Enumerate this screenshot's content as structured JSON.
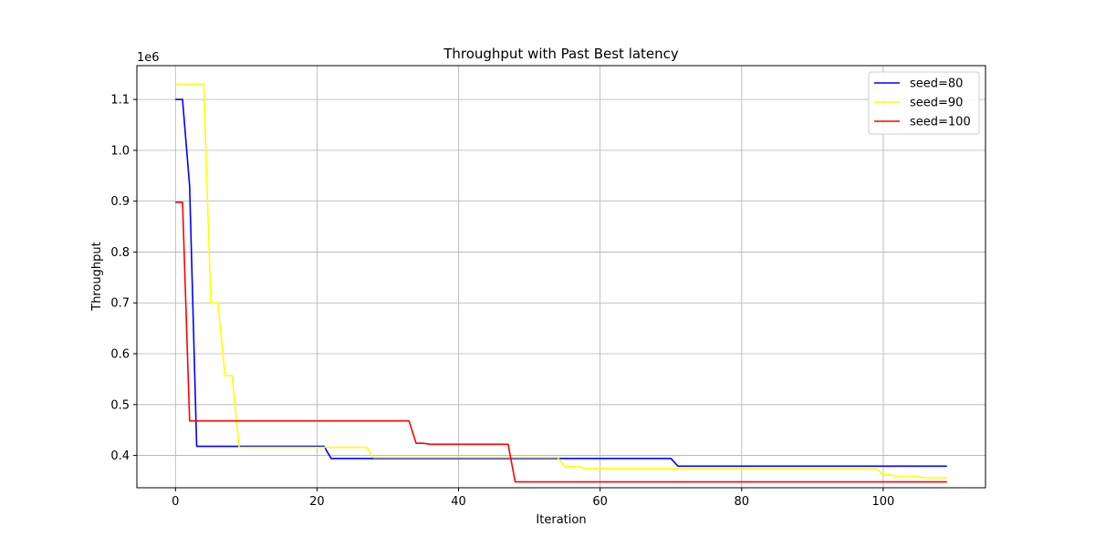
{
  "chart_data": {
    "type": "line",
    "title": "Throughput with Past Best latency",
    "xlabel": "Iteration",
    "ylabel": "Throughput",
    "y_multiplier": "1e6",
    "xlim": [
      -5.45,
      114.45
    ],
    "ylim": [
      0.3365,
      1.1665
    ],
    "x_ticks": [
      0,
      20,
      40,
      60,
      80,
      100
    ],
    "y_ticks": [
      0.4,
      0.5,
      0.6,
      0.7,
      0.8,
      0.9,
      1.0,
      1.1
    ],
    "grid": true,
    "legend_position": "top-right",
    "series": [
      {
        "name": "seed=80",
        "color": "#0000ff",
        "points": [
          [
            0,
            1.1
          ],
          [
            1,
            1.1
          ],
          [
            2,
            0.93
          ],
          [
            3,
            0.418
          ],
          [
            9,
            0.418
          ],
          [
            21,
            0.418
          ],
          [
            22,
            0.394
          ],
          [
            70,
            0.394
          ],
          [
            71,
            0.379
          ],
          [
            109,
            0.379
          ]
        ]
      },
      {
        "name": "seed=90",
        "color": "#ffff00",
        "points": [
          [
            0,
            1.13
          ],
          [
            4,
            1.13
          ],
          [
            5,
            0.7
          ],
          [
            6,
            0.7
          ],
          [
            7,
            0.557
          ],
          [
            8,
            0.557
          ],
          [
            9,
            0.416
          ],
          [
            27,
            0.416
          ],
          [
            28,
            0.396
          ],
          [
            54,
            0.396
          ],
          [
            55,
            0.378
          ],
          [
            57,
            0.378
          ],
          [
            58,
            0.374
          ],
          [
            99,
            0.374
          ],
          [
            100,
            0.362
          ],
          [
            101,
            0.362
          ],
          [
            102,
            0.358
          ],
          [
            105,
            0.358
          ],
          [
            106,
            0.356
          ],
          [
            109,
            0.356
          ]
        ]
      },
      {
        "name": "seed=100",
        "color": "#ff0000",
        "points": [
          [
            0,
            0.898
          ],
          [
            1,
            0.898
          ],
          [
            2,
            0.468
          ],
          [
            33,
            0.468
          ],
          [
            34,
            0.424
          ],
          [
            35,
            0.424
          ],
          [
            36,
            0.422
          ],
          [
            47,
            0.422
          ],
          [
            48,
            0.348
          ],
          [
            109,
            0.348
          ]
        ]
      }
    ]
  }
}
